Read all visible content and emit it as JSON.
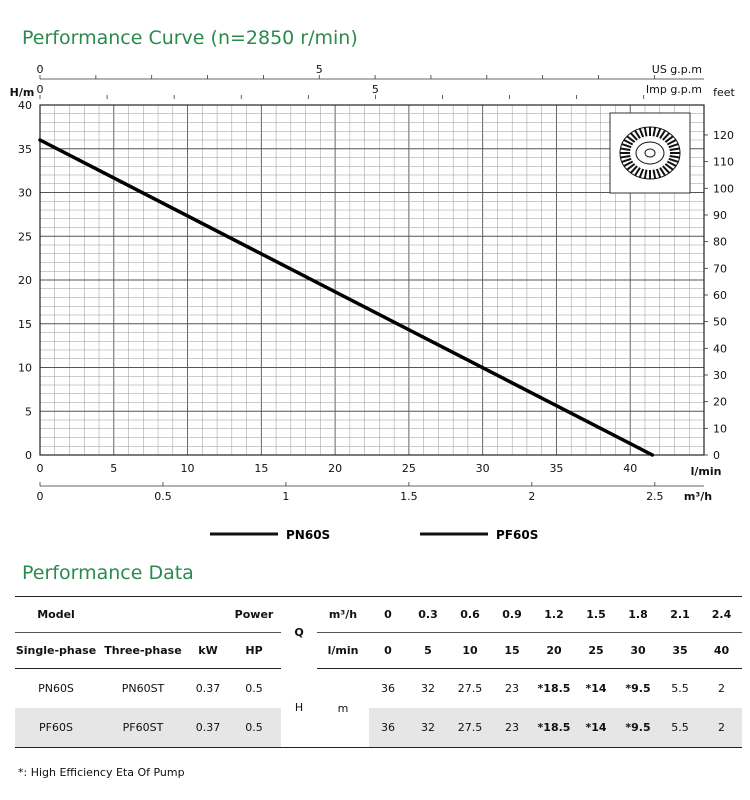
{
  "chart_title": "Performance Curve (n=2850 r/min)",
  "chart_data": {
    "type": "line",
    "x": [
      0,
      41.5
    ],
    "series": [
      {
        "name": "PN60S / PF60S",
        "x": [
          0,
          41.5
        ],
        "y": [
          36,
          0
        ]
      }
    ],
    "xlabel": "l/min",
    "ylabel": "H/m",
    "xlim": [
      0,
      45
    ],
    "ylim": [
      0,
      40
    ],
    "x_ticks": [
      0,
      5,
      10,
      15,
      20,
      25,
      30,
      35,
      40
    ],
    "y_ticks": [
      0,
      5,
      10,
      15,
      20,
      25,
      30,
      35,
      40
    ],
    "secondary_axes": {
      "m3h": {
        "label": "m³/h",
        "ticks": [
          0,
          0.5,
          1,
          1.5,
          2,
          2.5
        ]
      },
      "us_gpm": {
        "label": "US g.p.m",
        "ticks": [
          0,
          5
        ]
      },
      "imp_gpm": {
        "label": "Imp g.p.m",
        "ticks": [
          0,
          5
        ]
      },
      "feet": {
        "label": "feet",
        "ticks": [
          0,
          10,
          20,
          30,
          40,
          50,
          60,
          70,
          80,
          90,
          100,
          110,
          120
        ]
      }
    },
    "grid": true,
    "legend": [
      "PN60S",
      "PF60S"
    ]
  },
  "legend": {
    "pn": "PN60S",
    "pf": "PF60S"
  },
  "table_title": "Performance  Data",
  "table": {
    "h_model": "Model",
    "h_power": "Power",
    "h_q": "Q",
    "h_m3h": "m³/h",
    "m3h_values": [
      "0",
      "0.3",
      "0.6",
      "0.9",
      "1.2",
      "1.5",
      "1.8",
      "2.1",
      "2.4"
    ],
    "h_single": "Single-phase",
    "h_three": "Three-phase",
    "h_kw": "kW",
    "h_hp": "HP",
    "h_lmin": "l/min",
    "lmin_values": [
      "0",
      "5",
      "10",
      "15",
      "20",
      "25",
      "30",
      "35",
      "40"
    ],
    "h_label": "H",
    "m_label": "m",
    "rows": [
      {
        "single": "PN60S",
        "three": "PN60ST",
        "kw": "0.37",
        "hp": "0.5",
        "heads": [
          "36",
          "32",
          "27.5",
          "23",
          "*18.5",
          "*14",
          "*9.5",
          "5.5",
          "2"
        ]
      },
      {
        "single": "PF60S",
        "three": "PF60ST",
        "kw": "0.37",
        "hp": "0.5",
        "heads": [
          "36",
          "32",
          "27.5",
          "23",
          "*18.5",
          "*14",
          "*9.5",
          "5.5",
          "2"
        ]
      }
    ],
    "bold_flags": [
      false,
      false,
      false,
      false,
      true,
      true,
      true,
      false,
      false
    ]
  },
  "note": "*:  High Efficiency Eta Of Pump"
}
